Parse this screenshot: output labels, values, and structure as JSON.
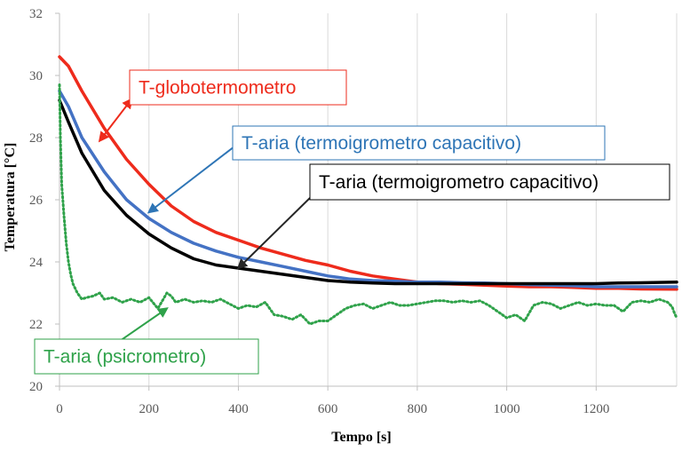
{
  "chart_data": {
    "type": "line",
    "title": "",
    "xlabel": "Tempo [s]",
    "ylabel": "Temperatura [°C]",
    "xlim": [
      0,
      1380
    ],
    "ylim": [
      20,
      32
    ],
    "x_ticks": [
      0,
      200,
      400,
      600,
      800,
      1000,
      1200
    ],
    "y_ticks": [
      20,
      22,
      24,
      26,
      28,
      30,
      32
    ],
    "grid": "vertical",
    "series": [
      {
        "name": "T-globotermometro",
        "color": "#ee2b1c",
        "x": [
          0,
          20,
          50,
          100,
          150,
          200,
          250,
          300,
          350,
          400,
          450,
          500,
          550,
          600,
          650,
          700,
          750,
          800,
          850,
          900,
          950,
          1000,
          1050,
          1100,
          1150,
          1200,
          1250,
          1300,
          1380
        ],
        "y": [
          30.6,
          30.3,
          29.5,
          28.3,
          27.3,
          26.5,
          25.8,
          25.3,
          24.95,
          24.7,
          24.45,
          24.25,
          24.05,
          23.9,
          23.7,
          23.55,
          23.45,
          23.35,
          23.3,
          23.28,
          23.25,
          23.22,
          23.2,
          23.2,
          23.18,
          23.15,
          23.15,
          23.13,
          23.12
        ]
      },
      {
        "name": "T-aria (termoigrometro capacitivo)",
        "color": "#4472c4",
        "x": [
          0,
          20,
          50,
          100,
          150,
          200,
          250,
          300,
          350,
          400,
          450,
          500,
          550,
          600,
          650,
          700,
          750,
          800,
          850,
          900,
          950,
          1000,
          1050,
          1100,
          1150,
          1200,
          1250,
          1300,
          1380
        ],
        "y": [
          29.5,
          29.0,
          28.0,
          26.9,
          26.0,
          25.4,
          24.95,
          24.6,
          24.35,
          24.15,
          24.0,
          23.85,
          23.7,
          23.55,
          23.45,
          23.4,
          23.38,
          23.35,
          23.35,
          23.33,
          23.32,
          23.3,
          23.27,
          23.25,
          23.23,
          23.2,
          23.2,
          23.2,
          23.2
        ]
      },
      {
        "name": "T-aria (termoigrometro capacitivo)",
        "color": "#000000",
        "x": [
          0,
          20,
          50,
          100,
          150,
          200,
          250,
          300,
          350,
          400,
          450,
          500,
          550,
          600,
          650,
          700,
          750,
          800,
          850,
          900,
          950,
          1000,
          1050,
          1100,
          1150,
          1200,
          1250,
          1300,
          1380
        ],
        "y": [
          29.2,
          28.5,
          27.5,
          26.3,
          25.5,
          24.9,
          24.45,
          24.1,
          23.9,
          23.8,
          23.7,
          23.6,
          23.5,
          23.4,
          23.35,
          23.32,
          23.3,
          23.3,
          23.3,
          23.3,
          23.3,
          23.3,
          23.3,
          23.3,
          23.3,
          23.3,
          23.32,
          23.33,
          23.35
        ]
      },
      {
        "name": "T-aria (psicrometro)",
        "color": "#2fa24a",
        "x": [
          0,
          2,
          5,
          10,
          15,
          20,
          25,
          30,
          40,
          50,
          60,
          75,
          90,
          100,
          120,
          140,
          160,
          180,
          200,
          220,
          240,
          250,
          260,
          280,
          300,
          320,
          340,
          360,
          380,
          400,
          420,
          440,
          460,
          480,
          500,
          520,
          540,
          560,
          580,
          600,
          620,
          640,
          660,
          680,
          700,
          720,
          740,
          760,
          780,
          800,
          820,
          840,
          860,
          880,
          900,
          920,
          940,
          960,
          980,
          1000,
          1020,
          1040,
          1060,
          1080,
          1100,
          1120,
          1140,
          1160,
          1180,
          1200,
          1220,
          1240,
          1260,
          1280,
          1300,
          1320,
          1340,
          1360,
          1370,
          1375,
          1380
        ],
        "y": [
          29.7,
          28.0,
          26.5,
          25.5,
          24.6,
          24.0,
          23.6,
          23.3,
          23.0,
          22.8,
          22.85,
          22.9,
          23.0,
          22.8,
          22.85,
          22.7,
          22.8,
          22.7,
          22.85,
          22.5,
          23.0,
          22.9,
          22.7,
          22.8,
          22.7,
          22.75,
          22.7,
          22.8,
          22.65,
          22.5,
          22.6,
          22.55,
          22.7,
          22.3,
          22.25,
          22.15,
          22.3,
          22.0,
          22.1,
          22.1,
          22.3,
          22.5,
          22.6,
          22.65,
          22.5,
          22.6,
          22.7,
          22.6,
          22.6,
          22.65,
          22.7,
          22.75,
          22.75,
          22.7,
          22.75,
          22.7,
          22.75,
          22.6,
          22.4,
          22.2,
          22.3,
          22.1,
          22.6,
          22.7,
          22.65,
          22.5,
          22.6,
          22.7,
          22.6,
          22.65,
          22.6,
          22.6,
          22.4,
          22.7,
          22.75,
          22.7,
          22.8,
          22.7,
          22.55,
          22.35,
          22.2
        ]
      }
    ],
    "annotations": [
      {
        "text": "T-globotermometro",
        "color": "#ee2b1c",
        "border": "#ee2b1c",
        "arrow_target": [
          90,
          27.9
        ]
      },
      {
        "text": "T-aria (termoigrometro capacitivo)",
        "color": "#2e75b6",
        "border": "#2e75b6",
        "arrow_target": [
          200,
          25.6
        ]
      },
      {
        "text": "T-aria (termoigrometro capacitivo)",
        "color": "#000000",
        "border": "#000000",
        "arrow_target": [
          400,
          23.8
        ]
      },
      {
        "text": "T-aria (psicrometro)",
        "color": "#2fa24a",
        "border": "#2fa24a",
        "arrow_target": [
          240,
          22.5
        ]
      }
    ]
  }
}
